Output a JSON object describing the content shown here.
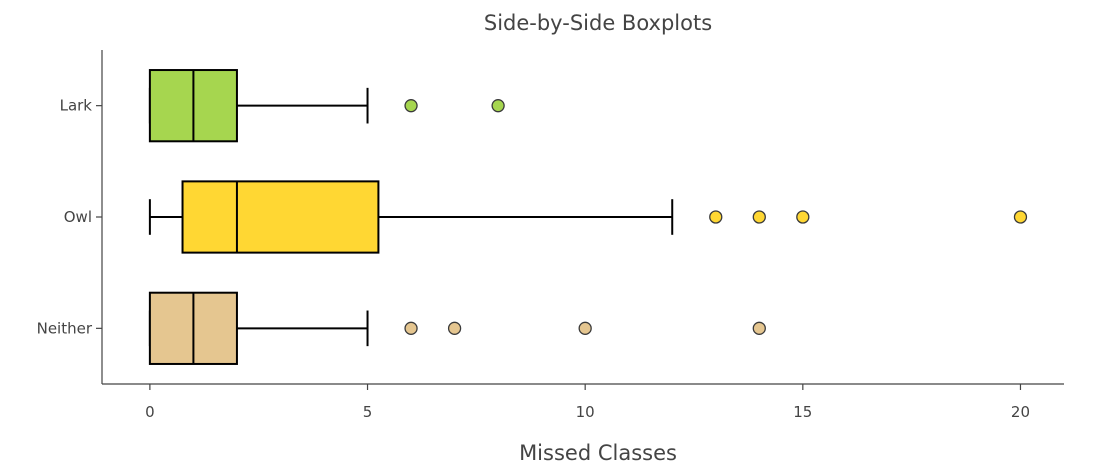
{
  "chart_data": {
    "type": "box",
    "title": "Side-by-Side Boxplots",
    "xlabel": "Missed Classes",
    "ylabel": "",
    "xlim": [
      -1.1,
      21
    ],
    "x_ticks": [
      "0",
      "5",
      "10",
      "15",
      "20"
    ],
    "categories": [
      "Lark",
      "Owl",
      "Neither"
    ],
    "series": [
      {
        "category": "Lark",
        "color": "#a6d64f",
        "whisker_low": 0,
        "q1": 0,
        "median": 1,
        "q3": 2,
        "whisker_high": 5,
        "outliers": [
          6,
          8
        ]
      },
      {
        "category": "Owl",
        "color": "#ffd733",
        "whisker_low": 0,
        "q1": 0.75,
        "median": 2,
        "q3": 5.25,
        "whisker_high": 12,
        "outliers": [
          13,
          14,
          15,
          20
        ]
      },
      {
        "category": "Neither",
        "color": "#e5c690",
        "whisker_low": 0,
        "q1": 0,
        "median": 1,
        "q3": 2,
        "whisker_high": 5,
        "outliers": [
          6,
          7,
          10,
          14
        ]
      }
    ],
    "grid": false,
    "legend": "none"
  }
}
